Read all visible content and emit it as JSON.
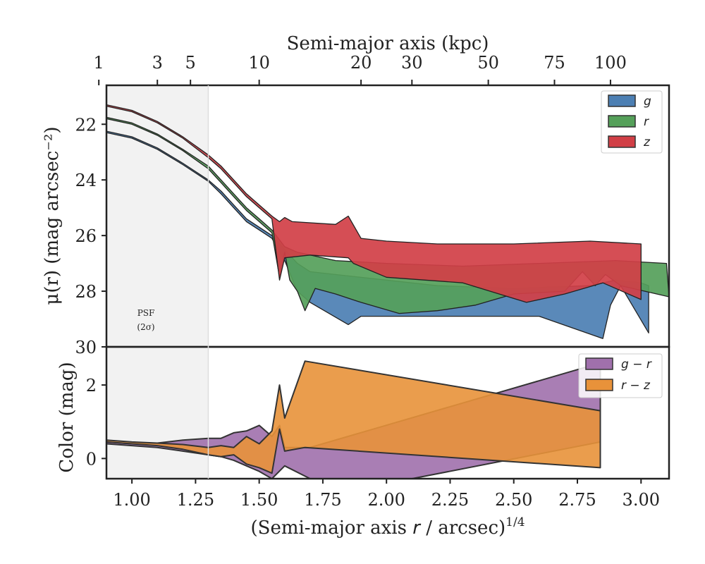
{
  "chart_data": [
    {
      "type": "area",
      "ylabel": "μ(r) (mag arcsec⁻²)",
      "top_xlabel": "Semi-major axis (kpc)",
      "top_ticks": [
        {
          "kpc": 1,
          "x": 0.87
        },
        {
          "kpc": 3,
          "x": 1.1
        },
        {
          "kpc": 5,
          "x": 1.23
        },
        {
          "kpc": 10,
          "x": 1.5
        },
        {
          "kpc": 20,
          "x": 1.9
        },
        {
          "kpc": 30,
          "x": 2.1
        },
        {
          "kpc": 50,
          "x": 2.4
        },
        {
          "kpc": 75,
          "x": 2.66
        },
        {
          "kpc": 100,
          "x": 2.88
        }
      ],
      "xlim": [
        0.9,
        3.11
      ],
      "ylim": [
        30,
        20.6
      ],
      "yticks": [
        22,
        24,
        26,
        28,
        30
      ],
      "psf": {
        "label": "PSF",
        "sublabel": "(2σ)",
        "x_max": 1.3
      },
      "legend": {
        "position": "top-right"
      },
      "series": [
        {
          "name": "g",
          "color": "#4c7fb3",
          "upper": [
            [
              0.9,
              22.25
            ],
            [
              1.0,
              22.45
            ],
            [
              1.1,
              22.85
            ],
            [
              1.2,
              23.4
            ],
            [
              1.3,
              24.0
            ],
            [
              1.35,
              24.4
            ],
            [
              1.4,
              24.9
            ],
            [
              1.45,
              25.4
            ],
            [
              1.5,
              25.7
            ],
            [
              1.55,
              26.0
            ],
            [
              1.6,
              26.5
            ],
            [
              1.65,
              27.0
            ],
            [
              1.7,
              27.3
            ],
            [
              1.8,
              27.4
            ],
            [
              2.0,
              27.6
            ],
            [
              2.2,
              27.8
            ],
            [
              2.5,
              27.9
            ],
            [
              2.8,
              27.8
            ],
            [
              2.9,
              27.6
            ],
            [
              3.0,
              27.7
            ],
            [
              3.03,
              27.8
            ]
          ],
          "lower": [
            [
              0.9,
              22.3
            ],
            [
              1.0,
              22.5
            ],
            [
              1.1,
              22.9
            ],
            [
              1.2,
              23.45
            ],
            [
              1.3,
              24.05
            ],
            [
              1.35,
              24.5
            ],
            [
              1.4,
              25.0
            ],
            [
              1.45,
              25.5
            ],
            [
              1.5,
              25.8
            ],
            [
              1.55,
              26.1
            ],
            [
              1.6,
              26.9
            ],
            [
              1.65,
              28.0
            ],
            [
              1.7,
              28.4
            ],
            [
              1.85,
              29.2
            ],
            [
              1.9,
              28.9
            ],
            [
              2.0,
              28.9
            ],
            [
              2.3,
              28.9
            ],
            [
              2.6,
              28.9
            ],
            [
              2.85,
              29.7
            ],
            [
              2.88,
              28.5
            ],
            [
              2.92,
              27.8
            ],
            [
              3.03,
              29.5
            ]
          ]
        },
        {
          "name": "r",
          "color": "#55a05a",
          "upper": [
            [
              0.9,
              21.75
            ],
            [
              1.0,
              21.95
            ],
            [
              1.1,
              22.35
            ],
            [
              1.2,
              22.9
            ],
            [
              1.3,
              23.5
            ],
            [
              1.35,
              24.0
            ],
            [
              1.4,
              24.5
            ],
            [
              1.45,
              25.0
            ],
            [
              1.5,
              25.4
            ],
            [
              1.55,
              25.8
            ],
            [
              1.6,
              26.4
            ],
            [
              1.65,
              26.6
            ],
            [
              1.8,
              26.9
            ],
            [
              2.0,
              27.0
            ],
            [
              2.3,
              27.1
            ],
            [
              2.6,
              27.0
            ],
            [
              2.9,
              26.9
            ],
            [
              3.1,
              27.0
            ]
          ],
          "lower": [
            [
              0.9,
              21.8
            ],
            [
              1.0,
              22.0
            ],
            [
              1.1,
              22.4
            ],
            [
              1.2,
              22.95
            ],
            [
              1.3,
              23.6
            ],
            [
              1.35,
              24.1
            ],
            [
              1.4,
              24.6
            ],
            [
              1.45,
              25.1
            ],
            [
              1.5,
              25.5
            ],
            [
              1.55,
              25.9
            ],
            [
              1.58,
              27.5
            ],
            [
              1.6,
              26.6
            ],
            [
              1.62,
              27.6
            ],
            [
              1.65,
              28.0
            ],
            [
              1.68,
              28.7
            ],
            [
              1.72,
              27.9
            ],
            [
              1.8,
              28.1
            ],
            [
              1.9,
              28.4
            ],
            [
              2.05,
              28.8
            ],
            [
              2.2,
              28.7
            ],
            [
              2.35,
              28.5
            ],
            [
              2.5,
              28.1
            ],
            [
              2.7,
              28.0
            ],
            [
              2.77,
              27.3
            ],
            [
              2.82,
              27.8
            ],
            [
              2.86,
              27.4
            ],
            [
              2.92,
              27.8
            ],
            [
              3.11,
              28.2
            ]
          ]
        },
        {
          "name": "z",
          "color": "#d13f46",
          "upper": [
            [
              0.9,
              21.3
            ],
            [
              1.0,
              21.5
            ],
            [
              1.1,
              21.9
            ],
            [
              1.2,
              22.45
            ],
            [
              1.3,
              23.1
            ],
            [
              1.35,
              23.5
            ],
            [
              1.4,
              24.0
            ],
            [
              1.45,
              24.5
            ],
            [
              1.5,
              24.9
            ],
            [
              1.55,
              25.3
            ],
            [
              1.58,
              25.5
            ],
            [
              1.6,
              25.35
            ],
            [
              1.63,
              25.5
            ],
            [
              1.8,
              25.6
            ],
            [
              1.85,
              25.3
            ],
            [
              1.9,
              26.1
            ],
            [
              2.0,
              26.2
            ],
            [
              2.2,
              26.3
            ],
            [
              2.5,
              26.3
            ],
            [
              2.8,
              26.2
            ],
            [
              3.0,
              26.3
            ]
          ],
          "lower": [
            [
              0.9,
              21.35
            ],
            [
              1.0,
              21.55
            ],
            [
              1.1,
              21.95
            ],
            [
              1.2,
              22.5
            ],
            [
              1.3,
              23.2
            ],
            [
              1.35,
              23.6
            ],
            [
              1.4,
              24.1
            ],
            [
              1.45,
              24.6
            ],
            [
              1.5,
              25.0
            ],
            [
              1.55,
              25.4
            ],
            [
              1.58,
              27.6
            ],
            [
              1.6,
              26.8
            ],
            [
              1.7,
              26.7
            ],
            [
              1.85,
              26.8
            ],
            [
              1.87,
              27.0
            ],
            [
              2.0,
              27.5
            ],
            [
              2.3,
              27.7
            ],
            [
              2.55,
              28.4
            ],
            [
              2.7,
              28.1
            ],
            [
              2.85,
              27.7
            ],
            [
              3.0,
              28.3
            ]
          ]
        }
      ]
    },
    {
      "type": "area",
      "ylabel": "Color (mag)",
      "xlabel": "(Semi-major axis r / arcsec)1/4",
      "xlim": [
        0.9,
        3.11
      ],
      "ylim": [
        -0.55,
        3.0
      ],
      "yticks": [
        0,
        2
      ],
      "xticks": [
        "1.00",
        "1.25",
        "1.50",
        "1.75",
        "2.00",
        "2.25",
        "2.50",
        "2.75",
        "3.00"
      ],
      "legend": {
        "position": "top-right"
      },
      "series": [
        {
          "name": "g − r",
          "color": "#a070ac",
          "upper": [
            [
              0.9,
              0.45
            ],
            [
              1.0,
              0.4
            ],
            [
              1.1,
              0.42
            ],
            [
              1.2,
              0.5
            ],
            [
              1.3,
              0.55
            ],
            [
              1.35,
              0.55
            ],
            [
              1.4,
              0.7
            ],
            [
              1.45,
              0.75
            ],
            [
              1.5,
              0.9
            ],
            [
              1.55,
              0.6
            ],
            [
              1.58,
              0.9
            ],
            [
              1.6,
              0.3
            ],
            [
              1.7,
              0.3
            ],
            [
              2.84,
              2.6
            ]
          ],
          "lower": [
            [
              0.9,
              0.4
            ],
            [
              1.0,
              0.35
            ],
            [
              1.1,
              0.3
            ],
            [
              1.2,
              0.2
            ],
            [
              1.3,
              0.1
            ],
            [
              1.35,
              0.05
            ],
            [
              1.4,
              -0.05
            ],
            [
              1.45,
              -0.2
            ],
            [
              1.5,
              -0.35
            ],
            [
              1.55,
              -0.55
            ],
            [
              1.6,
              -0.2
            ],
            [
              1.7,
              -0.55
            ],
            [
              2.1,
              -0.55
            ],
            [
              2.84,
              0.45
            ]
          ]
        },
        {
          "name": "r − z",
          "color": "#e8923a",
          "upper": [
            [
              0.9,
              0.5
            ],
            [
              1.0,
              0.45
            ],
            [
              1.1,
              0.42
            ],
            [
              1.2,
              0.38
            ],
            [
              1.3,
              0.3
            ],
            [
              1.35,
              0.35
            ],
            [
              1.4,
              0.3
            ],
            [
              1.45,
              0.6
            ],
            [
              1.5,
              0.4
            ],
            [
              1.55,
              0.75
            ],
            [
              1.58,
              2.0
            ],
            [
              1.6,
              1.1
            ],
            [
              1.68,
              2.65
            ],
            [
              2.84,
              1.3
            ]
          ],
          "lower": [
            [
              0.9,
              0.45
            ],
            [
              1.0,
              0.4
            ],
            [
              1.1,
              0.35
            ],
            [
              1.2,
              0.25
            ],
            [
              1.3,
              0.1
            ],
            [
              1.35,
              0.05
            ],
            [
              1.4,
              0.1
            ],
            [
              1.45,
              -0.15
            ],
            [
              1.5,
              -0.25
            ],
            [
              1.55,
              -0.4
            ],
            [
              1.58,
              0.8
            ],
            [
              1.6,
              0.2
            ],
            [
              1.68,
              0.3
            ],
            [
              2.84,
              -0.25
            ]
          ]
        }
      ]
    }
  ]
}
